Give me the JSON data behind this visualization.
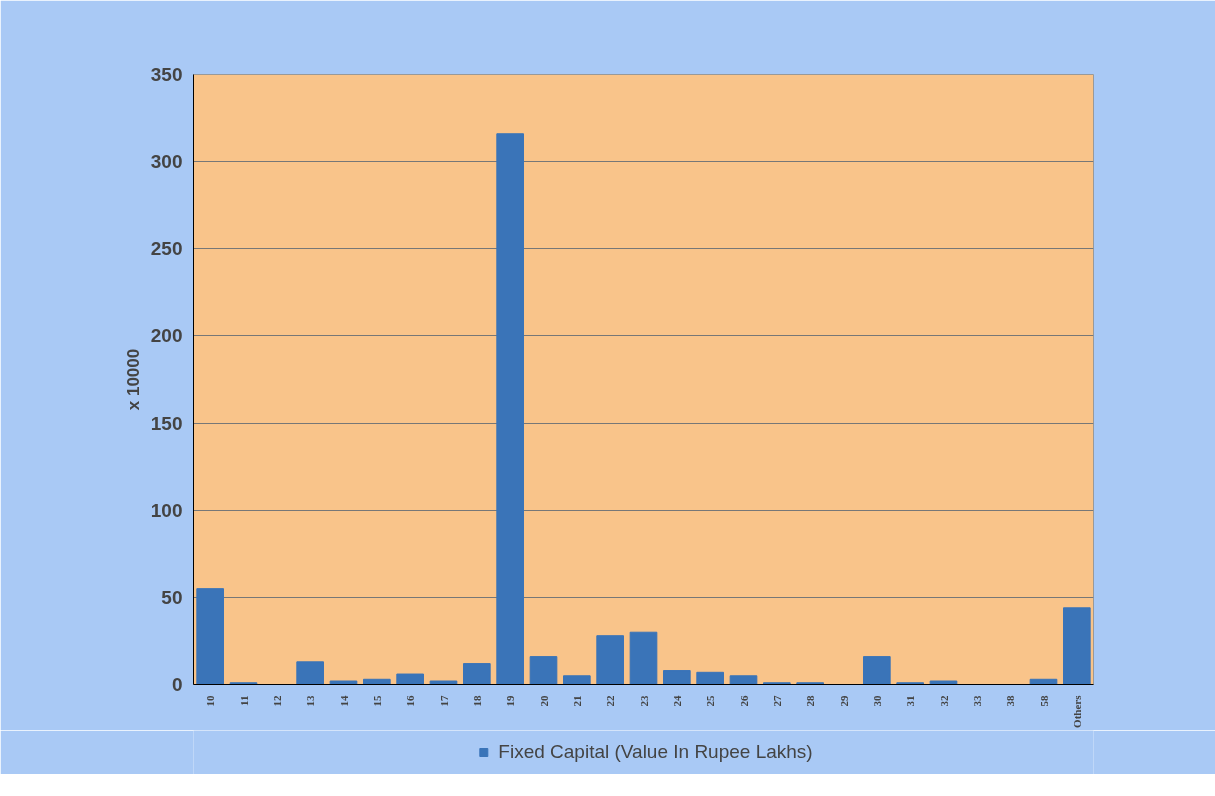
{
  "chart_data": {
    "type": "bar",
    "ylabel": "x 10000",
    "categories": [
      "10",
      "11",
      "12",
      "13",
      "14",
      "15",
      "16",
      "17",
      "18",
      "19",
      "20",
      "21",
      "22",
      "23",
      "24",
      "25",
      "26",
      "27",
      "28",
      "29",
      "30",
      "31",
      "32",
      "33",
      "38",
      "58",
      "Others"
    ],
    "series": [
      {
        "name": "Fixed Capital (Value In Rupee Lakhs)",
        "color": "#3a74b8",
        "values": [
          55,
          1,
          0,
          13,
          2,
          3,
          6,
          2,
          12,
          316,
          16,
          5,
          28,
          30,
          8,
          7,
          5,
          1,
          1,
          0,
          16,
          1,
          2,
          0,
          0,
          3,
          44
        ]
      }
    ],
    "ylim": [
      0,
      350
    ],
    "yticks": [
      0,
      50,
      100,
      150,
      200,
      250,
      300,
      350
    ],
    "grid": "y",
    "legend": "bottom"
  }
}
